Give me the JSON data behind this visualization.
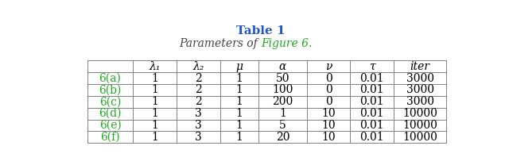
{
  "title": "Table 1",
  "title_color": "#2255cc",
  "subtitle_prefix": "Parameters of ",
  "subtitle_fig": "Figure 6.",
  "subtitle_fig_color": "#22aa22",
  "subtitle_color": "#444444",
  "col_headers": [
    "λ₁",
    "λ₂",
    "μ",
    "α",
    "ν",
    "τ",
    "iter"
  ],
  "row_labels": [
    "6(a)",
    "6(b)",
    "6(c)",
    "6(d)",
    "6(e)",
    "6(f)"
  ],
  "row_label_color": "#22aa22",
  "table_data": [
    [
      "1",
      "2",
      "1",
      "50",
      "0",
      "0.01",
      "3000"
    ],
    [
      "1",
      "2",
      "1",
      "100",
      "0",
      "0.01",
      "3000"
    ],
    [
      "1",
      "2",
      "1",
      "200",
      "0",
      "0.01",
      "3000"
    ],
    [
      "1",
      "3",
      "1",
      "1",
      "10",
      "0.01",
      "10000"
    ],
    [
      "1",
      "3",
      "1",
      "5",
      "10",
      "0.01",
      "10000"
    ],
    [
      "1",
      "3",
      "1",
      "20",
      "10",
      "0.01",
      "10000"
    ]
  ],
  "bg_color": "#ffffff",
  "line_color": "#808080",
  "text_color": "#000000",
  "title_fontsize": 11,
  "subtitle_fontsize": 10,
  "cell_fontsize": 10,
  "fig_width": 6.4,
  "fig_height": 2.08,
  "dpi": 100
}
